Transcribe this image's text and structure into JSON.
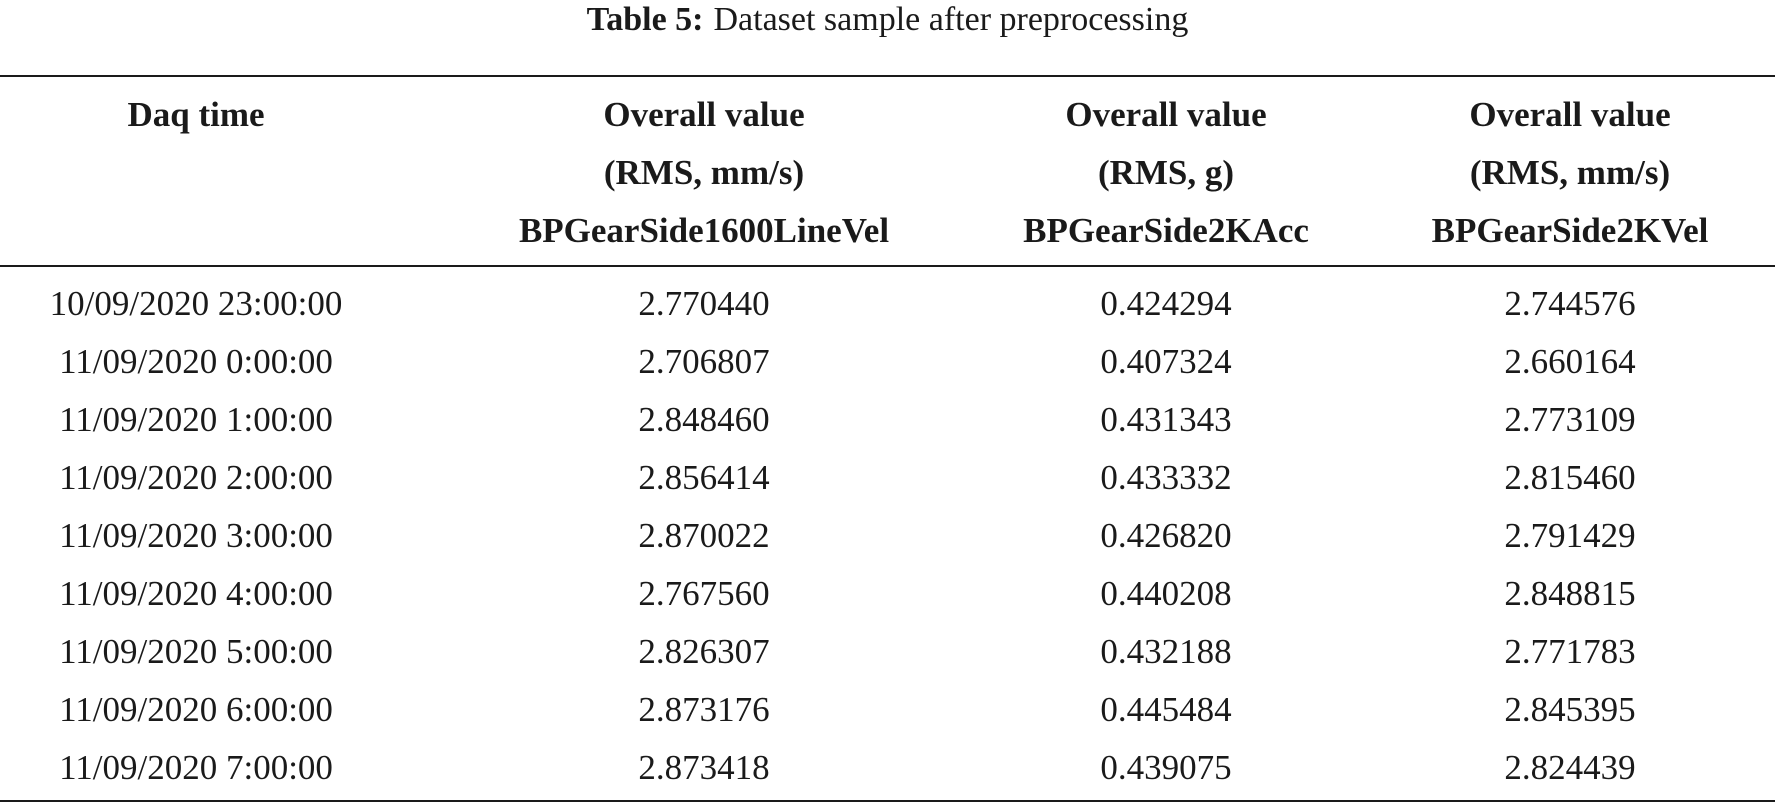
{
  "caption": {
    "label": "Table 5:",
    "text": "Dataset sample after preprocessing"
  },
  "table": {
    "columns": [
      [
        "Daq time"
      ],
      [
        "Overall value",
        "(RMS, mm/s)",
        "BPGearSide1600LineVel"
      ],
      [
        "Overall value",
        "(RMS, g)",
        "BPGearSide2KAcc"
      ],
      [
        "Overall value",
        "(RMS, mm/s)",
        "BPGearSide2KVel"
      ]
    ],
    "rows": [
      [
        "10/09/2020 23:00:00",
        "2.770440",
        "0.424294",
        "2.744576"
      ],
      [
        "11/09/2020 0:00:00",
        "2.706807",
        "0.407324",
        "2.660164"
      ],
      [
        "11/09/2020 1:00:00",
        "2.848460",
        "0.431343",
        "2.773109"
      ],
      [
        "11/09/2020 2:00:00",
        "2.856414",
        "0.433332",
        "2.815460"
      ],
      [
        "11/09/2020 3:00:00",
        "2.870022",
        "0.426820",
        "2.791429"
      ],
      [
        "11/09/2020 4:00:00",
        "2.767560",
        "0.440208",
        "2.848815"
      ],
      [
        "11/09/2020 5:00:00",
        "2.826307",
        "0.432188",
        "2.771783"
      ],
      [
        "11/09/2020 6:00:00",
        "2.873176",
        "0.445484",
        "2.845395"
      ],
      [
        "11/09/2020 7:00:00",
        "2.873418",
        "0.439075",
        "2.824439"
      ]
    ]
  }
}
